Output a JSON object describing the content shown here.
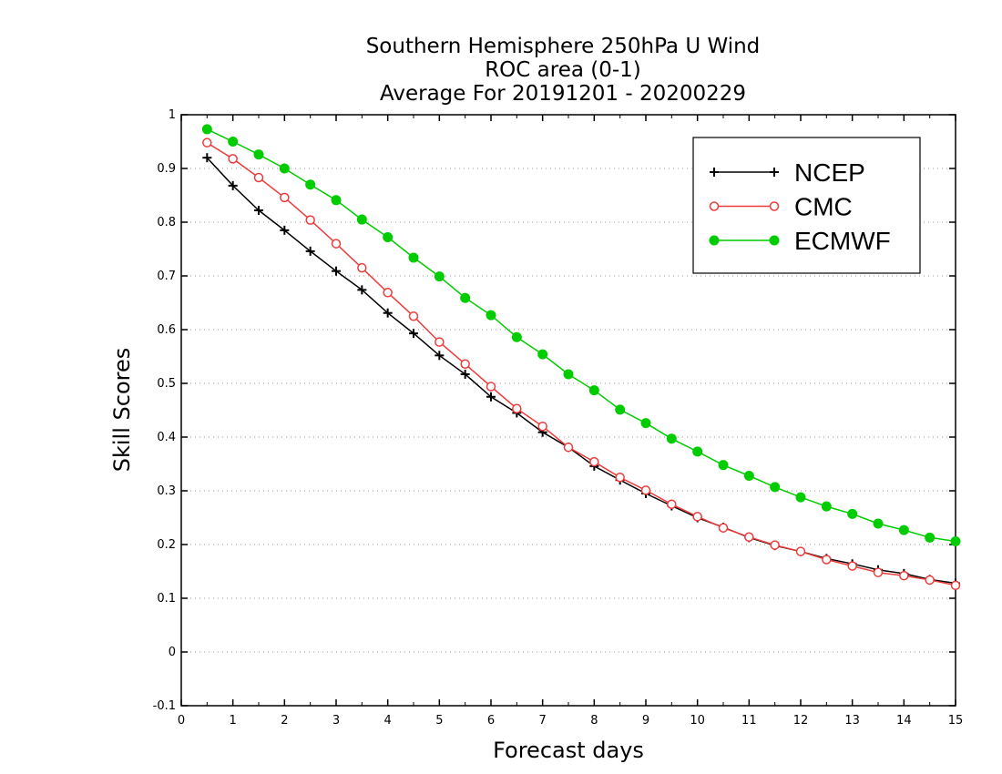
{
  "chart_data": {
    "type": "line",
    "title_lines": [
      "Southern Hemisphere 250hPa U Wind",
      "ROC area (0-1)",
      "Average For 20191201 - 20200229"
    ],
    "xlabel": "Forecast days",
    "ylabel": "Skill Scores",
    "xlim": [
      0,
      15
    ],
    "ylim": [
      -0.1,
      1
    ],
    "x_ticks": [
      0,
      1,
      2,
      3,
      4,
      5,
      6,
      7,
      8,
      9,
      10,
      11,
      12,
      13,
      14,
      15
    ],
    "y_ticks": [
      -0.1,
      0,
      0.1,
      0.2,
      0.3,
      0.4,
      0.5,
      0.6,
      0.7,
      0.8,
      0.9,
      1
    ],
    "y_tick_labels": [
      "-0.1",
      "0",
      "0.1",
      "0.2",
      "0.3",
      "0.4",
      "0.5",
      "0.6",
      "0.7",
      "0.8",
      "0.9",
      "1"
    ],
    "grid": "horizontal dotted",
    "legend_position": "top-right",
    "x": [
      0.5,
      1,
      1.5,
      2,
      2.5,
      3,
      3.5,
      4,
      4.5,
      5,
      5.5,
      6,
      6.5,
      7,
      7.5,
      8,
      8.5,
      9,
      9.5,
      10,
      10.5,
      11,
      11.5,
      12,
      12.5,
      13,
      13.5,
      14,
      14.5,
      15
    ],
    "series": [
      {
        "name": "NCEP",
        "color": "#000000",
        "marker": "plus",
        "values": [
          0.92,
          0.868,
          0.822,
          0.785,
          0.746,
          0.709,
          0.674,
          0.631,
          0.593,
          0.552,
          0.517,
          0.475,
          0.445,
          0.409,
          0.381,
          0.346,
          0.32,
          0.295,
          0.272,
          0.25,
          0.232,
          0.213,
          0.198,
          0.187,
          0.174,
          0.164,
          0.153,
          0.146,
          0.135,
          0.128
        ]
      },
      {
        "name": "CMC",
        "color": "#ee3b3b",
        "marker": "open-circle",
        "values": [
          0.948,
          0.918,
          0.883,
          0.846,
          0.804,
          0.76,
          0.715,
          0.669,
          0.625,
          0.577,
          0.536,
          0.494,
          0.453,
          0.42,
          0.381,
          0.354,
          0.325,
          0.301,
          0.275,
          0.252,
          0.231,
          0.214,
          0.199,
          0.187,
          0.172,
          0.16,
          0.148,
          0.142,
          0.134,
          0.124
        ]
      },
      {
        "name": "ECMWF",
        "color": "#00cc00",
        "marker": "filled-circle",
        "values": [
          0.973,
          0.95,
          0.926,
          0.9,
          0.87,
          0.841,
          0.805,
          0.772,
          0.734,
          0.699,
          0.659,
          0.627,
          0.586,
          0.554,
          0.517,
          0.487,
          0.451,
          0.426,
          0.397,
          0.373,
          0.348,
          0.328,
          0.307,
          0.288,
          0.271,
          0.257,
          0.239,
          0.227,
          0.213,
          0.206
        ]
      }
    ]
  }
}
